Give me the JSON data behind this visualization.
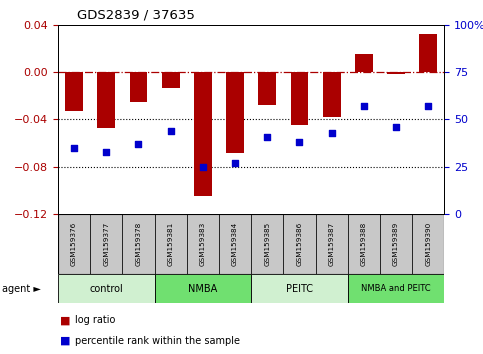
{
  "title": "GDS2839 / 37635",
  "samples": [
    "GSM159376",
    "GSM159377",
    "GSM159378",
    "GSM159381",
    "GSM159383",
    "GSM159384",
    "GSM159385",
    "GSM159386",
    "GSM159387",
    "GSM159388",
    "GSM159389",
    "GSM159390"
  ],
  "log_ratio": [
    -0.033,
    -0.047,
    -0.025,
    -0.013,
    -0.105,
    -0.068,
    -0.028,
    -0.045,
    -0.038,
    0.015,
    -0.002,
    0.032
  ],
  "percentile_rank": [
    35,
    33,
    37,
    44,
    25,
    27,
    41,
    38,
    43,
    57,
    46,
    57
  ],
  "groups": [
    {
      "label": "control",
      "color": "#d0f0d0",
      "start": 0,
      "end": 3
    },
    {
      "label": "NMBA",
      "color": "#70e070",
      "start": 3,
      "end": 6
    },
    {
      "label": "PEITC",
      "color": "#d0f0d0",
      "start": 6,
      "end": 9
    },
    {
      "label": "NMBA and PEITC",
      "color": "#70e070",
      "start": 9,
      "end": 12
    }
  ],
  "bar_color": "#aa0000",
  "dot_color": "#0000cc",
  "ylim_left": [
    -0.12,
    0.04
  ],
  "ylim_right": [
    0,
    100
  ],
  "yticks_left": [
    -0.12,
    -0.08,
    -0.04,
    0,
    0.04
  ],
  "yticks_right": [
    0,
    25,
    50,
    75,
    100
  ],
  "dotted_lines": [
    -0.04,
    -0.08
  ],
  "legend_items": [
    {
      "color": "#aa0000",
      "label": "log ratio"
    },
    {
      "color": "#0000cc",
      "label": "percentile rank within the sample"
    }
  ],
  "sample_box_color": "#c8c8c8",
  "agent_arrow": "agent ►"
}
